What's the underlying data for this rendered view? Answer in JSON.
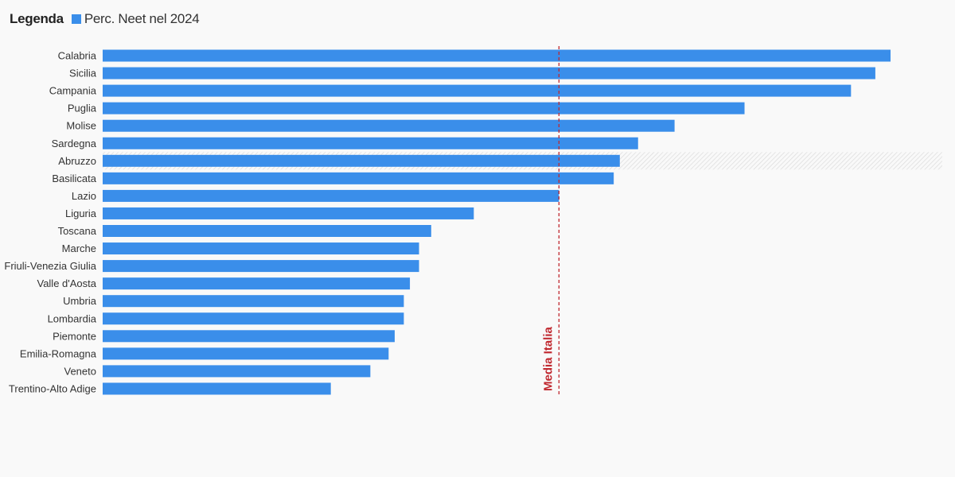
{
  "legend": {
    "title": "Legenda",
    "series_label": "Perc. Neet nel 2024"
  },
  "colors": {
    "bar": "#3a8eea",
    "reference_line": "#c0282f",
    "highlight_hatch": "#dddddd"
  },
  "chart_data": {
    "type": "bar",
    "orientation": "horizontal",
    "title": "",
    "xlabel": "",
    "ylabel": "",
    "categories": [
      "Calabria",
      "Sicilia",
      "Campania",
      "Puglia",
      "Molise",
      "Sardegna",
      "Abruzzo",
      "Basilicata",
      "Lazio",
      "Liguria",
      "Toscana",
      "Marche",
      "Friuli-Venezia Giulia",
      "Valle d'Aosta",
      "Umbria",
      "Lombardia",
      "Piemonte",
      "Emilia-Romagna",
      "Veneto",
      "Trentino-Alto Adige"
    ],
    "series": [
      {
        "name": "Perc. Neet nel 2024",
        "values": [
          25.9,
          25.4,
          24.6,
          21.1,
          18.8,
          17.6,
          17.0,
          16.8,
          15.0,
          12.2,
          10.8,
          10.4,
          10.4,
          10.1,
          9.9,
          9.9,
          9.6,
          9.4,
          8.8,
          7.5
        ]
      }
    ],
    "xlim": [
      0,
      27.6
    ],
    "grid": false,
    "highlighted_category": "Abruzzo",
    "reference_line": {
      "label": "Media Italia",
      "value": 15.0
    }
  }
}
